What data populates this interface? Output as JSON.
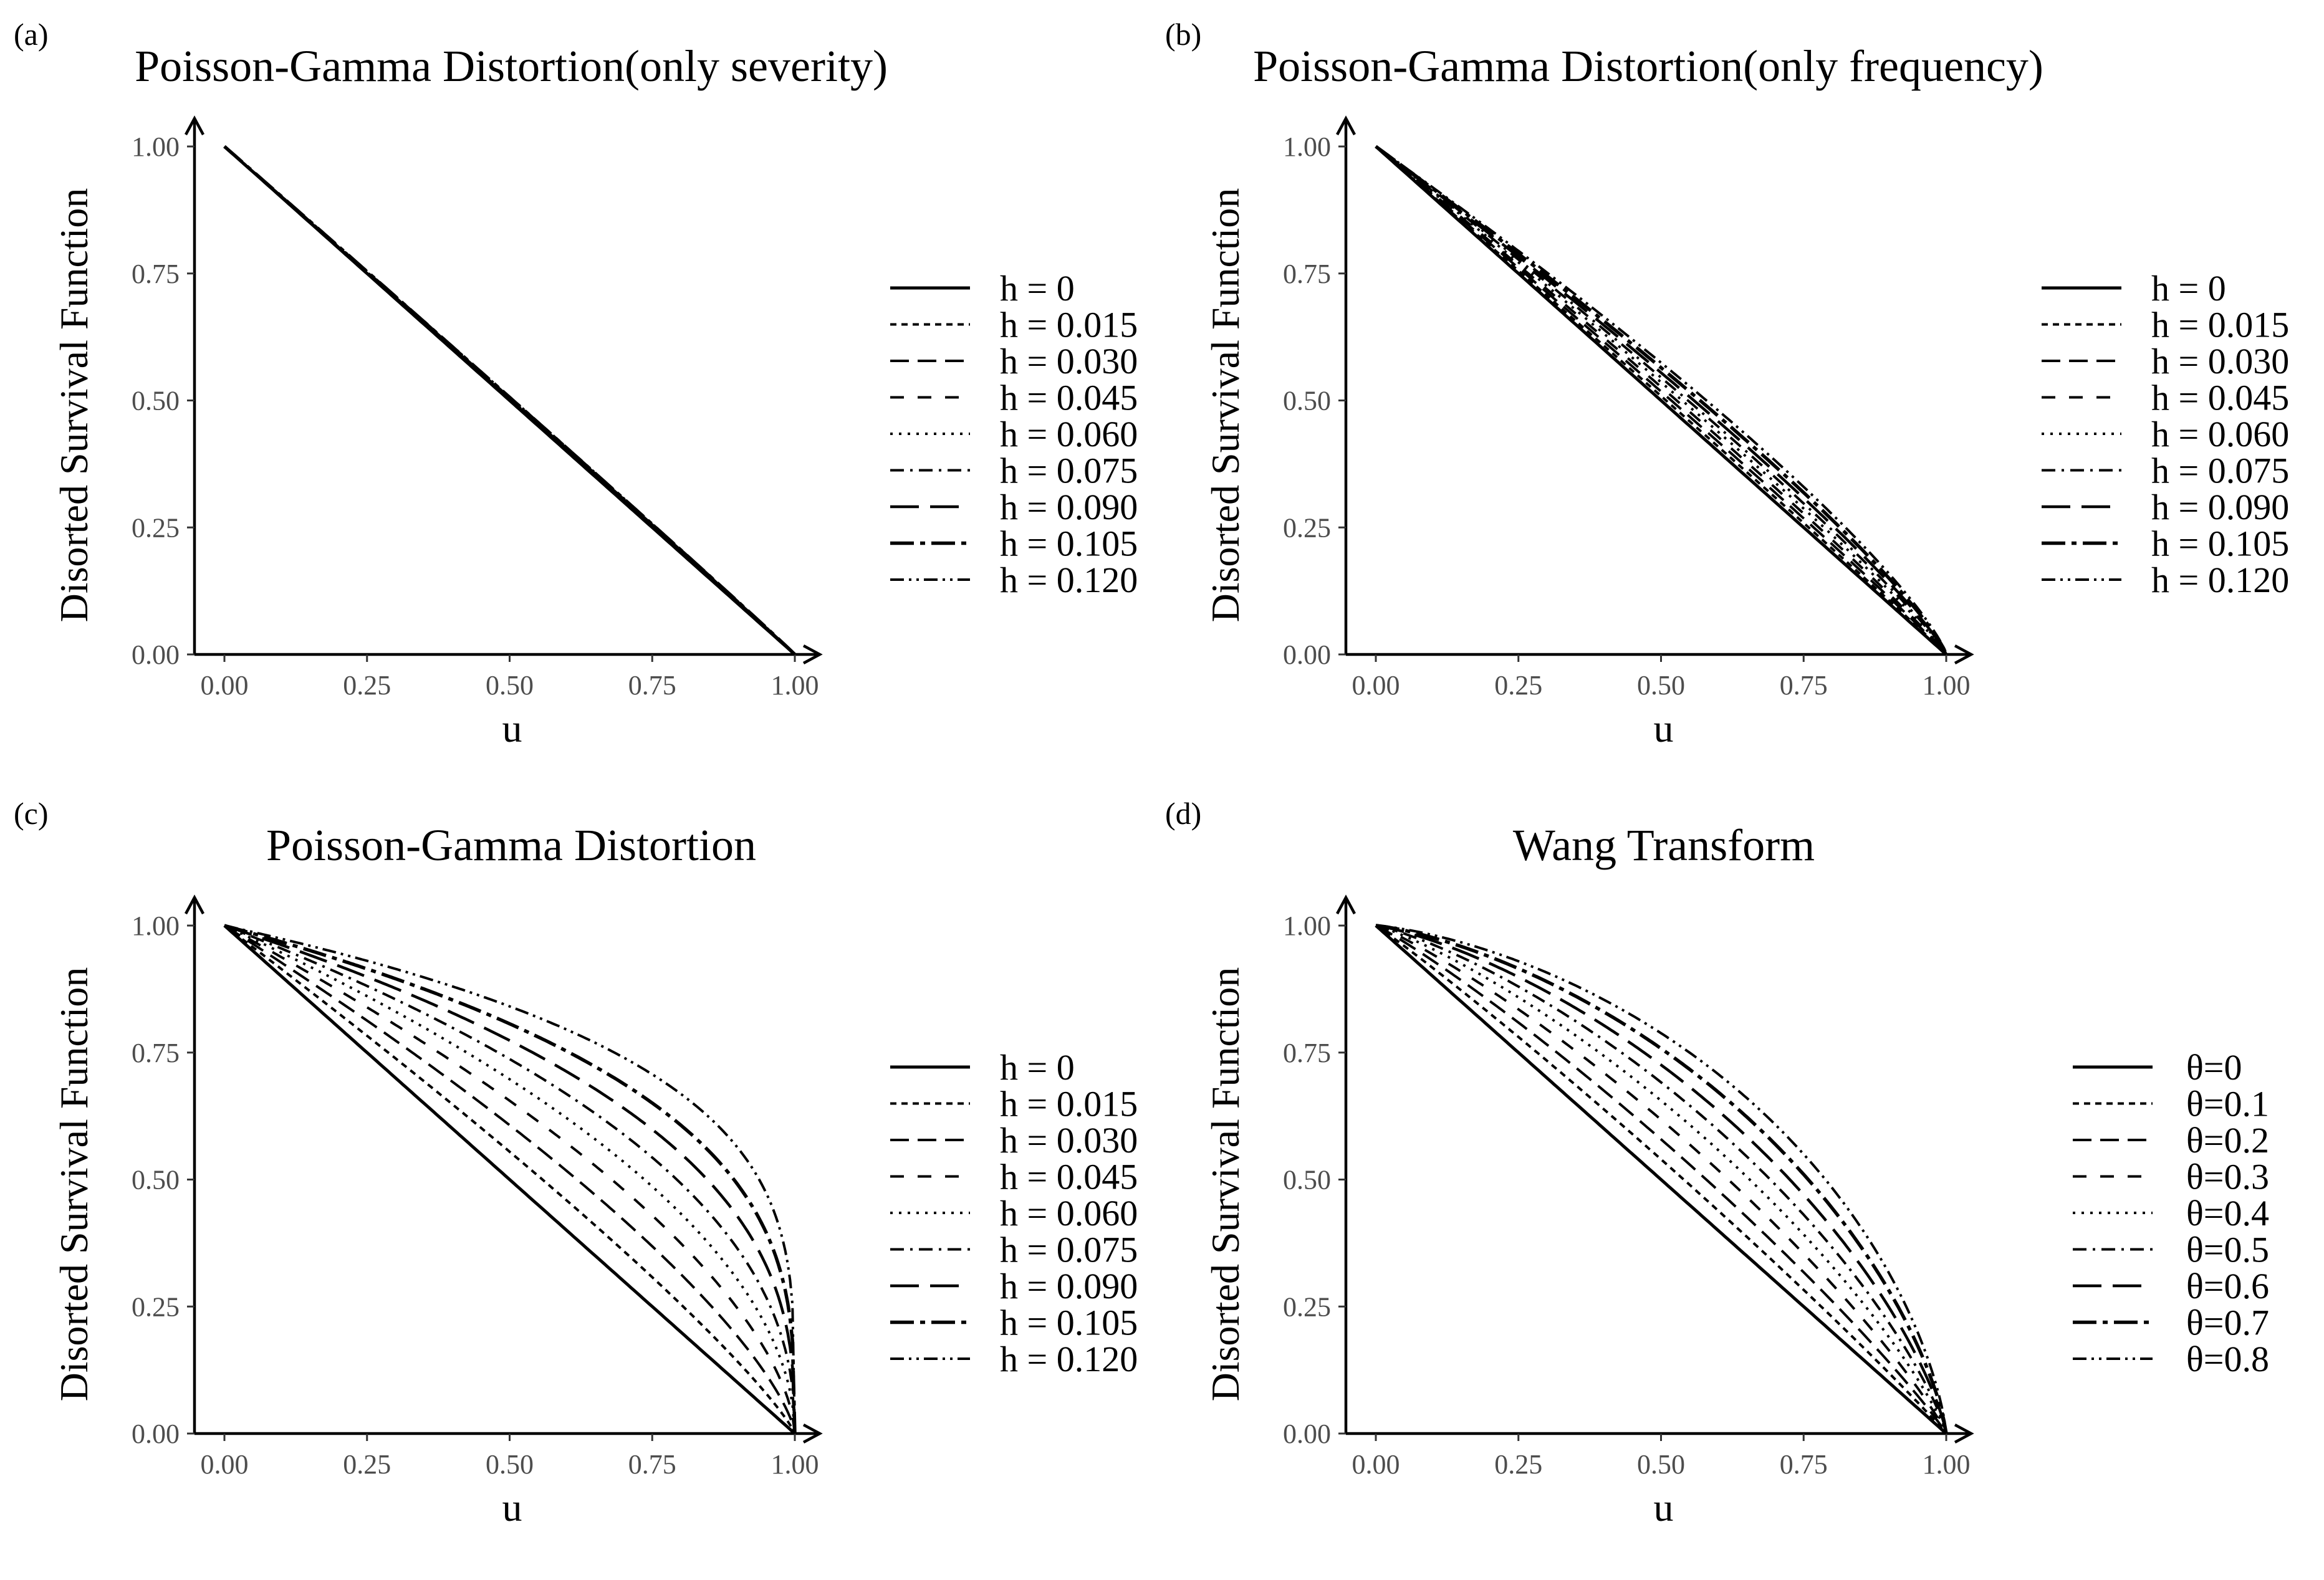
{
  "chart_data": [
    {
      "panel": "(a)",
      "type": "line",
      "title": "Poisson-Gamma Distortion(only severity)",
      "xlabel": "u",
      "ylabel": "Disorted Survival Function",
      "xlim": [
        0,
        1
      ],
      "ylim": [
        0,
        1
      ],
      "xticks": [
        "0.00",
        "0.25",
        "0.50",
        "0.75",
        "1.00"
      ],
      "yticks": [
        "0.00",
        "0.25",
        "0.50",
        "0.75",
        "1.00"
      ],
      "legend_position": "right",
      "curve_family": "power",
      "x": [
        0,
        0.1,
        0.2,
        0.3,
        0.4,
        0.5,
        0.6,
        0.7,
        0.8,
        0.9,
        1.0
      ],
      "series": [
        {
          "name": "h = 0",
          "p": 1.0
        },
        {
          "name": "h = 0.015",
          "p": 0.9975
        },
        {
          "name": "h = 0.030",
          "p": 0.995
        },
        {
          "name": "h = 0.045",
          "p": 0.9925
        },
        {
          "name": "h = 0.060",
          "p": 0.99
        },
        {
          "name": "h = 0.075",
          "p": 0.9875
        },
        {
          "name": "h = 0.090",
          "p": 0.985
        },
        {
          "name": "h = 0.105",
          "p": 0.9825
        },
        {
          "name": "h = 0.120",
          "p": 0.98
        }
      ]
    },
    {
      "panel": "(b)",
      "type": "line",
      "title": "Poisson-Gamma Distortion(only frequency)",
      "xlabel": "u",
      "ylabel": "Disorted Survival Function",
      "xlim": [
        0,
        1
      ],
      "ylim": [
        0,
        1
      ],
      "xticks": [
        "0.00",
        "0.25",
        "0.50",
        "0.75",
        "1.00"
      ],
      "yticks": [
        "0.00",
        "0.25",
        "0.50",
        "0.75",
        "1.00"
      ],
      "legend_position": "right",
      "curve_family": "power",
      "x": [
        0,
        0.1,
        0.2,
        0.3,
        0.4,
        0.5,
        0.6,
        0.7,
        0.8,
        0.9,
        1.0
      ],
      "series": [
        {
          "name": "h = 0",
          "p": 1.0
        },
        {
          "name": "h = 0.015",
          "p": 0.975
        },
        {
          "name": "h = 0.030",
          "p": 0.95
        },
        {
          "name": "h = 0.045",
          "p": 0.925
        },
        {
          "name": "h = 0.060",
          "p": 0.9
        },
        {
          "name": "h = 0.075",
          "p": 0.875
        },
        {
          "name": "h = 0.090",
          "p": 0.85
        },
        {
          "name": "h = 0.105",
          "p": 0.825
        },
        {
          "name": "h = 0.120",
          "p": 0.8
        }
      ]
    },
    {
      "panel": "(c)",
      "type": "line",
      "title": "Poisson-Gamma Distortion",
      "xlabel": "u",
      "ylabel": "Disorted Survival Function",
      "xlim": [
        0,
        1
      ],
      "ylim": [
        0,
        1
      ],
      "xticks": [
        "0.00",
        "0.25",
        "0.50",
        "0.75",
        "1.00"
      ],
      "yticks": [
        "0.00",
        "0.25",
        "0.50",
        "0.75",
        "1.00"
      ],
      "legend_position": "right",
      "curve_family": "power",
      "x": [
        0,
        0.1,
        0.2,
        0.3,
        0.4,
        0.5,
        0.6,
        0.7,
        0.8,
        0.9,
        1.0
      ],
      "series": [
        {
          "name": "h = 0",
          "p": 1.0
        },
        {
          "name": "h = 0.015",
          "p": 0.85
        },
        {
          "name": "h = 0.030",
          "p": 0.72
        },
        {
          "name": "h = 0.045",
          "p": 0.61
        },
        {
          "name": "h = 0.060",
          "p": 0.52
        },
        {
          "name": "h = 0.075",
          "p": 0.44
        },
        {
          "name": "h = 0.090",
          "p": 0.37
        },
        {
          "name": "h = 0.105",
          "p": 0.31
        },
        {
          "name": "h = 0.120",
          "p": 0.25
        }
      ]
    },
    {
      "panel": "(d)",
      "type": "line",
      "title": "Wang Transform",
      "xlabel": "u",
      "ylabel": "Disorted Survival Function",
      "xlim": [
        0,
        1
      ],
      "ylim": [
        0,
        1
      ],
      "xticks": [
        "0.00",
        "0.25",
        "0.50",
        "0.75",
        "1.00"
      ],
      "yticks": [
        "0.00",
        "0.25",
        "0.50",
        "0.75",
        "1.00"
      ],
      "legend_position": "right",
      "curve_family": "wang",
      "x": [
        0,
        0.1,
        0.2,
        0.3,
        0.4,
        0.5,
        0.6,
        0.7,
        0.8,
        0.9,
        1.0
      ],
      "series": [
        {
          "name": "θ=0",
          "theta": 0.0
        },
        {
          "name": "θ=0.1",
          "theta": 0.1
        },
        {
          "name": "θ=0.2",
          "theta": 0.2
        },
        {
          "name": "θ=0.3",
          "theta": 0.3
        },
        {
          "name": "θ=0.4",
          "theta": 0.4
        },
        {
          "name": "θ=0.5",
          "theta": 0.5
        },
        {
          "name": "θ=0.6",
          "theta": 0.6
        },
        {
          "name": "θ=0.7",
          "theta": 0.7
        },
        {
          "name": "θ=0.8",
          "theta": 0.8
        }
      ]
    }
  ]
}
